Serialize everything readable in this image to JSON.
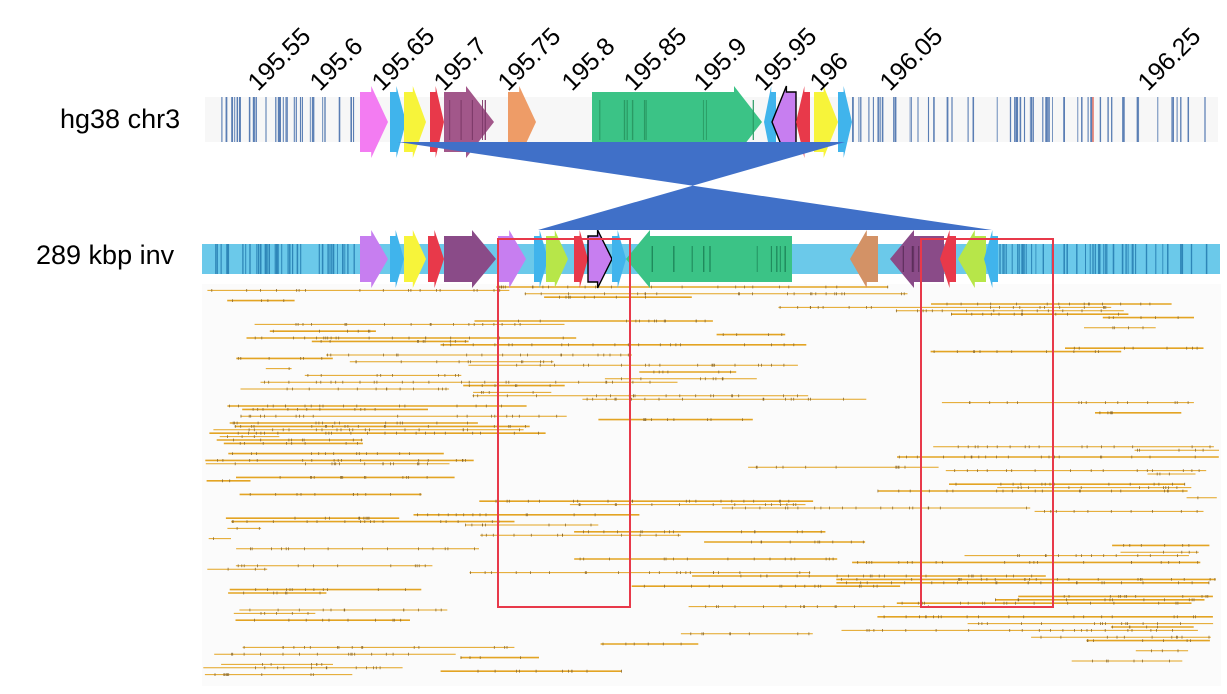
{
  "tracks": {
    "reference_label": "hg38 chr3",
    "assembly_label": "289 kbp inv"
  },
  "axis": {
    "units": "Mbp",
    "ticks": [
      "195.55",
      "195.6",
      "195.65",
      "195.7",
      "195.75",
      "195.8",
      "195.85",
      "195.9",
      "195.95",
      "196",
      "196.05",
      "196.25"
    ]
  },
  "colors": {
    "pink": "#f37cf2",
    "blue": "#40b4ec",
    "yellow": "#f7f43a",
    "red": "#e8394a",
    "purple": "#a2578a",
    "orange": "#ee9c67",
    "green": "#3bc386",
    "lime": "#b7e649",
    "violet": "#c77ef0",
    "tan": "#d39266",
    "dark_purple": "#8a4b88",
    "track_bg_ref": "#f7f7f7",
    "track_bg_inv": "#6bc9ea",
    "inversion": "#4070c8",
    "reads": "#e3a423",
    "highlight_box": "#d8262a"
  },
  "highlights": [
    {
      "name": "left-breakpoint-box",
      "color": "red"
    },
    {
      "name": "right-breakpoint-box",
      "color": "red"
    }
  ]
}
